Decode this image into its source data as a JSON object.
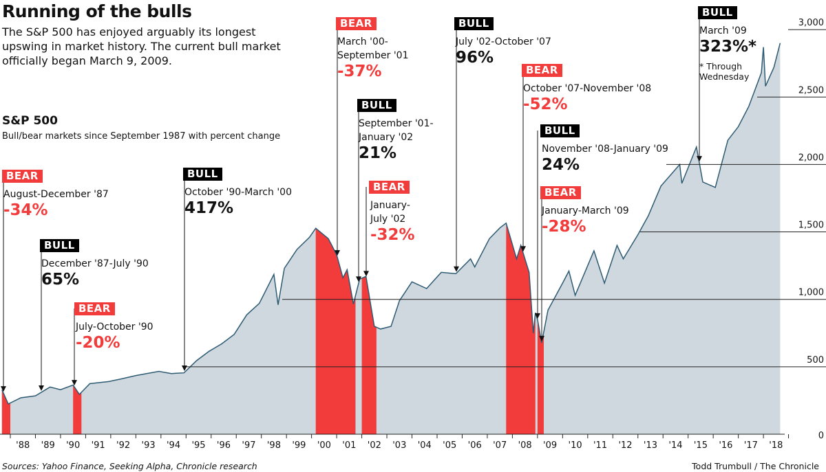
{
  "header": {
    "title": "Running of the bulls",
    "intro": "The S&P 500 has enjoyed arguably its longest upswing in market history. The current bull market officially began March 9, 2009.",
    "subtitle": "S&P 500",
    "subdesc": "Bull/bear markets since September 1987 with percent change"
  },
  "footer": {
    "source": "Sources: Yahoo Finance, Seeking Alpha, Chronicle research",
    "credit": "Todd Trumbull / The Chronicle"
  },
  "colors": {
    "area": "#cfd8df",
    "line": "#2d5a73",
    "bear": "#f23b3b",
    "bull": "#000000"
  },
  "chart_data": {
    "type": "area",
    "title": "S&P 500",
    "xlabels": [
      "'88",
      "'89",
      "'90",
      "'91",
      "'92",
      "'93",
      "'94",
      "'95",
      "'96",
      "'97",
      "'98",
      "'99",
      "'00",
      "'01",
      "'02",
      "'03",
      "'04",
      "'05",
      "'06",
      "'07",
      "'08",
      "'09",
      "'10",
      "'11",
      "'12",
      "'13",
      "'14",
      "'15",
      "'16",
      "'17",
      "'18"
    ],
    "yticks": [
      "0",
      "500",
      "1,000",
      "1,500",
      "2,000",
      "2,500",
      "3,000"
    ],
    "yvalues": [
      0,
      500,
      1000,
      1500,
      2000,
      2500,
      3000
    ],
    "ylim": [
      0,
      3000
    ],
    "xlim": [
      "1987-09",
      "2018-09"
    ],
    "series": [
      {
        "points": [
          [
            "1987-09",
            330
          ],
          [
            "1987-12",
            224
          ],
          [
            "1988-06",
            270
          ],
          [
            "1989-01",
            285
          ],
          [
            "1989-08",
            350
          ],
          [
            "1990-01",
            330
          ],
          [
            "1990-07",
            365
          ],
          [
            "1990-10",
            295
          ],
          [
            "1991-03",
            375
          ],
          [
            "1991-12",
            390
          ],
          [
            "1992-06",
            410
          ],
          [
            "1993-01",
            435
          ],
          [
            "1993-12",
            466
          ],
          [
            "1994-06",
            450
          ],
          [
            "1994-12",
            455
          ],
          [
            "1995-06",
            545
          ],
          [
            "1995-12",
            615
          ],
          [
            "1996-06",
            670
          ],
          [
            "1996-12",
            740
          ],
          [
            "1997-06",
            885
          ],
          [
            "1997-12",
            970
          ],
          [
            "1998-07",
            1185
          ],
          [
            "1998-09",
            960
          ],
          [
            "1998-12",
            1230
          ],
          [
            "1999-06",
            1370
          ],
          [
            "1999-12",
            1460
          ],
          [
            "2000-03",
            1527
          ],
          [
            "2000-09",
            1450
          ],
          [
            "2001-01",
            1330
          ],
          [
            "2001-04",
            1160
          ],
          [
            "2001-06",
            1220
          ],
          [
            "2001-09",
            965
          ],
          [
            "2001-12",
            1150
          ],
          [
            "2002-03",
            1170
          ],
          [
            "2002-07",
            800
          ],
          [
            "2002-10",
            780
          ],
          [
            "2003-03",
            800
          ],
          [
            "2003-07",
            990
          ],
          [
            "2004-01",
            1130
          ],
          [
            "2004-08",
            1080
          ],
          [
            "2005-03",
            1200
          ],
          [
            "2005-10",
            1190
          ],
          [
            "2006-05",
            1300
          ],
          [
            "2006-07",
            1240
          ],
          [
            "2007-02",
            1450
          ],
          [
            "2007-07",
            1530
          ],
          [
            "2007-10",
            1565
          ],
          [
            "2008-03",
            1300
          ],
          [
            "2008-05",
            1400
          ],
          [
            "2008-09",
            1200
          ],
          [
            "2008-11",
            750
          ],
          [
            "2008-12",
            900
          ],
          [
            "2009-01",
            850
          ],
          [
            "2009-03",
            677
          ],
          [
            "2009-06",
            920
          ],
          [
            "2010-01",
            1120
          ],
          [
            "2010-04",
            1210
          ],
          [
            "2010-07",
            1030
          ],
          [
            "2011-04",
            1360
          ],
          [
            "2011-09",
            1120
          ],
          [
            "2012-03",
            1400
          ],
          [
            "2012-06",
            1300
          ],
          [
            "2013-01",
            1480
          ],
          [
            "2013-06",
            1620
          ],
          [
            "2013-12",
            1840
          ],
          [
            "2014-09",
            2000
          ],
          [
            "2014-10",
            1860
          ],
          [
            "2015-05",
            2130
          ],
          [
            "2015-08",
            1870
          ],
          [
            "2016-02",
            1830
          ],
          [
            "2016-08",
            2180
          ],
          [
            "2017-01",
            2280
          ],
          [
            "2017-06",
            2430
          ],
          [
            "2017-12",
            2680
          ],
          [
            "2018-01",
            2870
          ],
          [
            "2018-02",
            2580
          ],
          [
            "2018-06",
            2720
          ],
          [
            "2018-09",
            2900
          ]
        ]
      }
    ],
    "bear_periods": [
      [
        "1987-08",
        "1987-12"
      ],
      [
        "1990-07",
        "1990-10"
      ],
      [
        "2000-03",
        "2001-09"
      ],
      [
        "2002-01",
        "2002-07"
      ],
      [
        "2007-10",
        "2008-11"
      ],
      [
        "2009-01",
        "2009-03"
      ]
    ],
    "annotations": [
      {
        "type": "bear",
        "tag": "BEAR",
        "lines": [
          "August-December '87"
        ],
        "pct": "-34%"
      },
      {
        "type": "bull",
        "tag": "BULL",
        "lines": [
          "December '87-July '90"
        ],
        "pct": "65%"
      },
      {
        "type": "bear",
        "tag": "BEAR",
        "lines": [
          "July-October '90"
        ],
        "pct": "-20%"
      },
      {
        "type": "bull",
        "tag": "BULL",
        "lines": [
          "October '90-March '00"
        ],
        "pct": "417%"
      },
      {
        "type": "bear",
        "tag": "BEAR",
        "lines": [
          "March '00-",
          "September '01"
        ],
        "pct": "-37%"
      },
      {
        "type": "bull",
        "tag": "BULL",
        "lines": [
          "September '01-",
          "January '02"
        ],
        "pct": "21%"
      },
      {
        "type": "bear",
        "tag": "BEAR",
        "lines": [
          "January-",
          "July '02"
        ],
        "pct": "-32%"
      },
      {
        "type": "bull",
        "tag": "BULL",
        "lines": [
          "July '02-October '07"
        ],
        "pct": "96%"
      },
      {
        "type": "bear",
        "tag": "BEAR",
        "lines": [
          "October '07-November '08"
        ],
        "pct": "-52%"
      },
      {
        "type": "bull",
        "tag": "BULL",
        "lines": [
          "November '08-January '09"
        ],
        "pct": "24%"
      },
      {
        "type": "bear",
        "tag": "BEAR",
        "lines": [
          "January-March '09"
        ],
        "pct": "-28%"
      },
      {
        "type": "bull",
        "tag": "BULL",
        "lines": [
          "March '09"
        ],
        "pct": "323%*",
        "note": [
          "* Through",
          "Wednesday"
        ]
      }
    ]
  }
}
